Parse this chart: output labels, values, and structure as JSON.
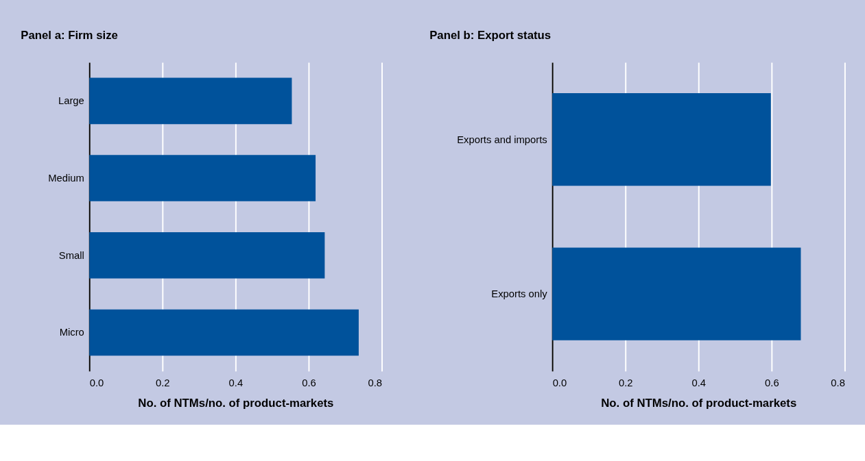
{
  "chart_data": [
    {
      "type": "bar",
      "orientation": "horizontal",
      "title": "Panel a: Firm size",
      "xlabel": "No. of NTMs/no. of product-markets",
      "categories": [
        "Large",
        "Medium",
        "Small",
        "Micro"
      ],
      "values": [
        0.554,
        0.619,
        0.644,
        0.737
      ],
      "color": "#00529b",
      "xlim": [
        0,
        0.8
      ],
      "xticks": [
        {
          "value": 0,
          "label": "0.0"
        },
        {
          "value": 0.2,
          "label": "0.2"
        },
        {
          "value": 0.4,
          "label": "0.4"
        },
        {
          "value": 0.6,
          "label": "0.6"
        },
        {
          "value": 0.8,
          "label": "0.8"
        }
      ],
      "grid": "x"
    },
    {
      "type": "bar",
      "orientation": "horizontal",
      "title": "Panel b: Export status",
      "xlabel": "No. of NTMs/no. of product-markets",
      "categories": [
        "Exports and imports",
        "Exports only"
      ],
      "values": [
        0.598,
        0.68
      ],
      "color": "#00529b",
      "xlim": [
        0,
        0.8
      ],
      "xticks": [
        {
          "value": 0,
          "label": "0.0"
        },
        {
          "value": 0.2,
          "label": "0.2"
        },
        {
          "value": 0.4,
          "label": "0.4"
        },
        {
          "value": 0.6,
          "label": "0.6"
        },
        {
          "value": 0.8,
          "label": "0.8"
        }
      ],
      "grid": "x"
    }
  ]
}
